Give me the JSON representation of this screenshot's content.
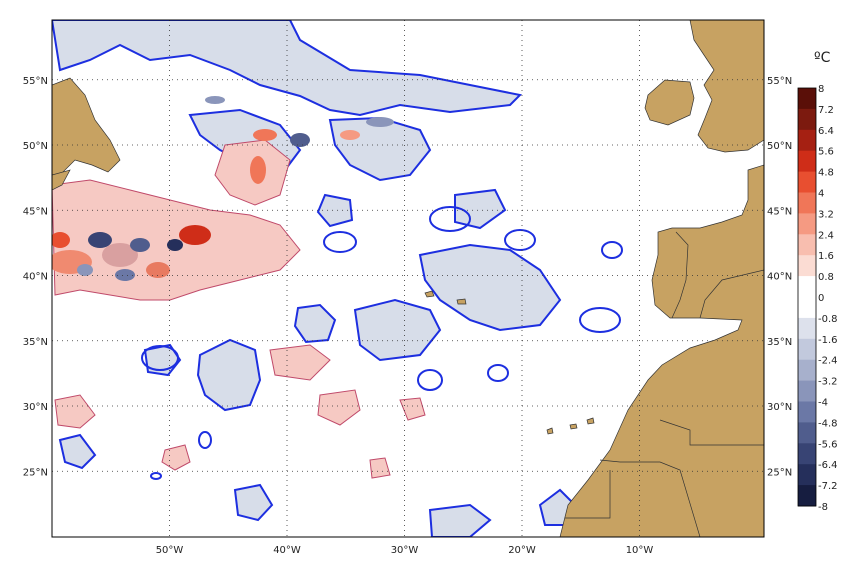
{
  "map": {
    "lon_labels": [
      {
        "lon": -50,
        "text": "50°W"
      },
      {
        "lon": -40,
        "text": "40°W"
      },
      {
        "lon": -30,
        "text": "30°W"
      },
      {
        "lon": -20,
        "text": "20°W"
      },
      {
        "lon": -10,
        "text": "10°W"
      }
    ],
    "lat_labels": [
      {
        "lat": 55,
        "text": "55°N"
      },
      {
        "lat": 50,
        "text": "50°N"
      },
      {
        "lat": 45,
        "text": "45°N"
      },
      {
        "lat": 40,
        "text": "40°N"
      },
      {
        "lat": 35,
        "text": "35°N"
      },
      {
        "lat": 30,
        "text": "30°N"
      },
      {
        "lat": 25,
        "text": "25°N"
      }
    ],
    "colors": {
      "land": "#c7a262",
      "warm_fill": "#f6c9c3",
      "cold_fill": "#d7dde9",
      "contour_blue": "#1d2fe0",
      "contour_red": "#c04a6a"
    }
  },
  "colorbar": {
    "unit": "ºC",
    "labels": [
      "8",
      "7.2",
      "6.4",
      "5.6",
      "4.8",
      "4",
      "3.2",
      "2.4",
      "1.6",
      "0.8",
      "0",
      "-0.8",
      "-1.6",
      "-2.4",
      "-3.2",
      "-4",
      "-4.8",
      "-5.6",
      "-6.4",
      "-7.2",
      "-8"
    ],
    "colors": [
      "#5a0f08",
      "#7c1a0f",
      "#a52012",
      "#cf2d18",
      "#e84f30",
      "#f07658",
      "#f59a82",
      "#f8beaf",
      "#fbdcd3",
      "#ffffff",
      "#ffffff",
      "#dde1ec",
      "#c2c9dd",
      "#a7b0cc",
      "#8a95ba",
      "#6b78a6",
      "#505d8d",
      "#384474",
      "#252f5b",
      "#161d40",
      "#080c1e"
    ]
  }
}
